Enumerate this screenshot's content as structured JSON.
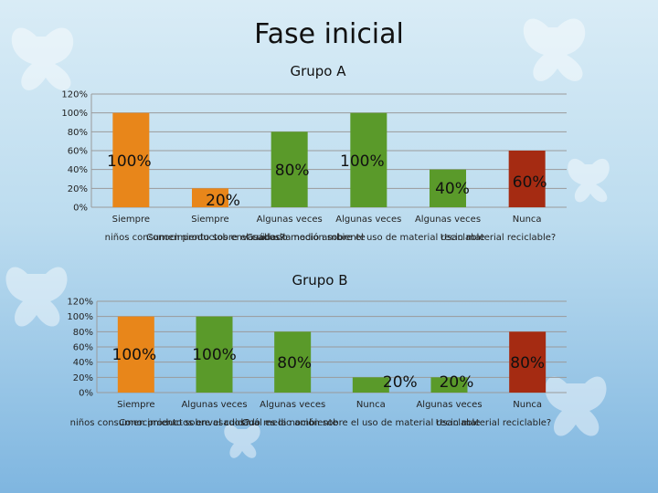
{
  "slide_title": "Fase inicial",
  "colors": {
    "orange": "#e8861a",
    "green": "#5a9a2a",
    "red": "#a52b12",
    "grid": "#9a9a9a"
  },
  "chart_data": [
    {
      "type": "bar",
      "title": "Grupo A",
      "ylim": [
        0,
        120
      ],
      "yticks": [
        "0%",
        "20%",
        "40%",
        "60%",
        "80%",
        "100%",
        "120%"
      ],
      "categories": [
        "Siempre",
        "Siempre",
        "Algunas veces",
        "Algunas veces",
        "Algunas veces",
        "Nunca"
      ],
      "values": [
        100,
        20,
        80,
        100,
        40,
        60
      ],
      "labels": [
        "100%",
        "20%",
        "80%",
        "100%",
        "40%",
        "60%"
      ],
      "bar_colors": [
        "orange",
        "orange",
        "green",
        "green",
        "green",
        "red"
      ],
      "questions": [
        "niños consumen productos envasados?",
        "Conocimiento sobre el cuidado medio ambiente",
        "Cuál es la noción sobre el uso de material reciclable",
        "Usan material reciclable?"
      ]
    },
    {
      "type": "bar",
      "title": "Grupo B",
      "ylim": [
        0,
        120
      ],
      "yticks": [
        "0%",
        "20%",
        "40%",
        "60%",
        "80%",
        "100%",
        "120%"
      ],
      "categories": [
        "Siempre",
        "Algunas veces",
        "Algunas veces",
        "Nunca",
        "Algunas veces",
        "Nunca"
      ],
      "values": [
        100,
        100,
        80,
        20,
        20,
        80
      ],
      "labels": [
        "100%",
        "100%",
        "80%",
        "20%",
        "20%",
        "80%"
      ],
      "bar_colors": [
        "orange",
        "green",
        "green",
        "green",
        "green",
        "red"
      ],
      "questions": [
        "niños consumen productos envasados?",
        "Conocimiento sobre el cuidado medio ambiente",
        "Cuál es la noción sobre el uso de material reciclable",
        "Usan material reciclable?"
      ]
    }
  ]
}
